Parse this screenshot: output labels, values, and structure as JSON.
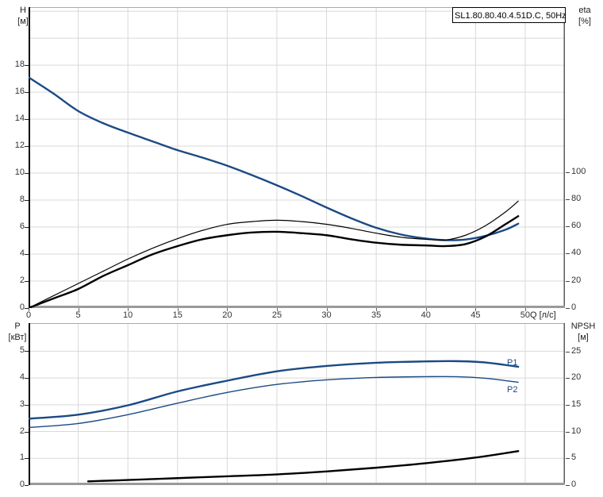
{
  "colors": {
    "background": "#ffffff",
    "grid": "#d9d9d9",
    "axis_left": "#000000",
    "axis_bottom": "#9a9a9a",
    "axis_right": "#5a5a5a",
    "frame_top": "#aaaaaa",
    "text": "#333333",
    "curve_blue": "#1b4a84",
    "curve_black": "#000000"
  },
  "chart_data": [
    {
      "id": "hq-eta-chart",
      "type": "line",
      "title": "SL1.80.80.40.4.51D.C, 50Hz",
      "x_axis": {
        "label": "Q [л/с]",
        "range": [
          0,
          54
        ],
        "ticks": [
          0,
          5,
          10,
          15,
          20,
          25,
          30,
          35,
          40,
          45,
          50
        ],
        "show_labels": true
      },
      "y_left": {
        "label": "H",
        "unit": "[м]",
        "range": [
          0,
          22.3
        ],
        "ticks": [
          0,
          2,
          4,
          6,
          8,
          10,
          12,
          14,
          16,
          18
        ],
        "grid": [
          2,
          4,
          6,
          8,
          10,
          12,
          14,
          16,
          18,
          20,
          22
        ]
      },
      "y_right": {
        "label": "eta",
        "unit": "[%]",
        "range": [
          0,
          221
        ],
        "ticks": [
          0,
          20,
          40,
          60,
          80,
          100
        ]
      },
      "series": [
        {
          "name": "H",
          "axis": "left",
          "color": "#1b4a84",
          "stroke_width": 2.4,
          "points": [
            [
              0,
              17.1
            ],
            [
              2.5,
              15.9
            ],
            [
              5,
              14.6
            ],
            [
              7.5,
              13.7
            ],
            [
              10,
              13.0
            ],
            [
              12.5,
              12.35
            ],
            [
              15,
              11.7
            ],
            [
              17.5,
              11.15
            ],
            [
              20,
              10.55
            ],
            [
              22.5,
              9.85
            ],
            [
              25,
              9.1
            ],
            [
              27.5,
              8.3
            ],
            [
              30,
              7.45
            ],
            [
              32.5,
              6.65
            ],
            [
              35,
              5.95
            ],
            [
              37.5,
              5.45
            ],
            [
              40,
              5.15
            ],
            [
              42,
              5.03
            ],
            [
              44,
              5.08
            ],
            [
              46,
              5.35
            ],
            [
              48,
              5.8
            ],
            [
              49.3,
              6.25
            ]
          ]
        },
        {
          "name": "eta-thin",
          "axis": "right",
          "color": "#000000",
          "stroke_width": 1.2,
          "points": [
            [
              0,
              0
            ],
            [
              2.5,
              9
            ],
            [
              5,
              18
            ],
            [
              7.5,
              27
            ],
            [
              10,
              36
            ],
            [
              12.5,
              44
            ],
            [
              15,
              51
            ],
            [
              17.5,
              57
            ],
            [
              20,
              61.5
            ],
            [
              22.5,
              63.5
            ],
            [
              25,
              64.5
            ],
            [
              27.5,
              63.5
            ],
            [
              30,
              61.5
            ],
            [
              32.5,
              58.5
            ],
            [
              35,
              55
            ],
            [
              37.5,
              52
            ],
            [
              40,
              50.5
            ],
            [
              42,
              50
            ],
            [
              44,
              53.5
            ],
            [
              46,
              60.5
            ],
            [
              48,
              70.5
            ],
            [
              49.3,
              78.5
            ]
          ]
        },
        {
          "name": "eta-thick",
          "axis": "right",
          "color": "#000000",
          "stroke_width": 2.4,
          "points": [
            [
              0,
              0
            ],
            [
              2.5,
              7
            ],
            [
              5,
              14
            ],
            [
              7.5,
              23.5
            ],
            [
              10,
              31.5
            ],
            [
              12.5,
              39.5
            ],
            [
              15,
              45.5
            ],
            [
              17.5,
              50.5
            ],
            [
              20,
              53.5
            ],
            [
              22.5,
              55.5
            ],
            [
              25,
              56
            ],
            [
              27.5,
              55
            ],
            [
              30,
              53.5
            ],
            [
              32.5,
              50.5
            ],
            [
              35,
              48
            ],
            [
              37.5,
              46.5
            ],
            [
              40,
              46
            ],
            [
              42,
              45.5
            ],
            [
              44,
              47
            ],
            [
              46,
              52.5
            ],
            [
              48,
              61.5
            ],
            [
              49.3,
              67.5
            ]
          ]
        }
      ]
    },
    {
      "id": "power-npsh-chart",
      "type": "line",
      "title": "",
      "x_axis": {
        "label": "",
        "range": [
          0,
          54
        ],
        "ticks": [
          0,
          5,
          10,
          15,
          20,
          25,
          30,
          35,
          40,
          45,
          50
        ],
        "show_labels": false
      },
      "y_left": {
        "label": "P",
        "unit": "[кВт]",
        "range": [
          0,
          6.05
        ],
        "ticks": [
          0,
          1,
          2,
          3,
          4,
          5
        ],
        "grid": [
          1,
          2,
          3,
          4,
          5
        ]
      },
      "y_right": {
        "label": "NPSH",
        "unit": "[м]",
        "range": [
          0,
          30.3
        ],
        "ticks": [
          0,
          5,
          10,
          15,
          20,
          25
        ]
      },
      "series": [
        {
          "name": "P1",
          "axis": "left",
          "color": "#1b4a84",
          "stroke_width": 2.4,
          "points": [
            [
              0,
              2.48
            ],
            [
              5,
              2.63
            ],
            [
              10,
              2.98
            ],
            [
              15,
              3.5
            ],
            [
              20,
              3.9
            ],
            [
              25,
              4.25
            ],
            [
              30,
              4.45
            ],
            [
              35,
              4.57
            ],
            [
              40,
              4.62
            ],
            [
              43,
              4.63
            ],
            [
              46,
              4.58
            ],
            [
              49.3,
              4.42
            ]
          ]
        },
        {
          "name": "P2",
          "axis": "left",
          "color": "#1b4a84",
          "stroke_width": 1.4,
          "points": [
            [
              0,
              2.15
            ],
            [
              5,
              2.3
            ],
            [
              10,
              2.63
            ],
            [
              15,
              3.06
            ],
            [
              20,
              3.46
            ],
            [
              25,
              3.76
            ],
            [
              30,
              3.93
            ],
            [
              35,
              4.02
            ],
            [
              40,
              4.05
            ],
            [
              43,
              4.05
            ],
            [
              46,
              3.99
            ],
            [
              49.3,
              3.84
            ]
          ]
        },
        {
          "name": "NPSH",
          "axis": "right",
          "color": "#000000",
          "stroke_width": 2.4,
          "points": [
            [
              6,
              0.7
            ],
            [
              10,
              0.95
            ],
            [
              15,
              1.3
            ],
            [
              20,
              1.65
            ],
            [
              25,
              2.0
            ],
            [
              30,
              2.55
            ],
            [
              35,
              3.25
            ],
            [
              40,
              4.1
            ],
            [
              45,
              5.15
            ],
            [
              49.3,
              6.35
            ]
          ]
        }
      ]
    }
  ],
  "annotations": {
    "p1_label": "P1",
    "p2_label": "P2"
  }
}
